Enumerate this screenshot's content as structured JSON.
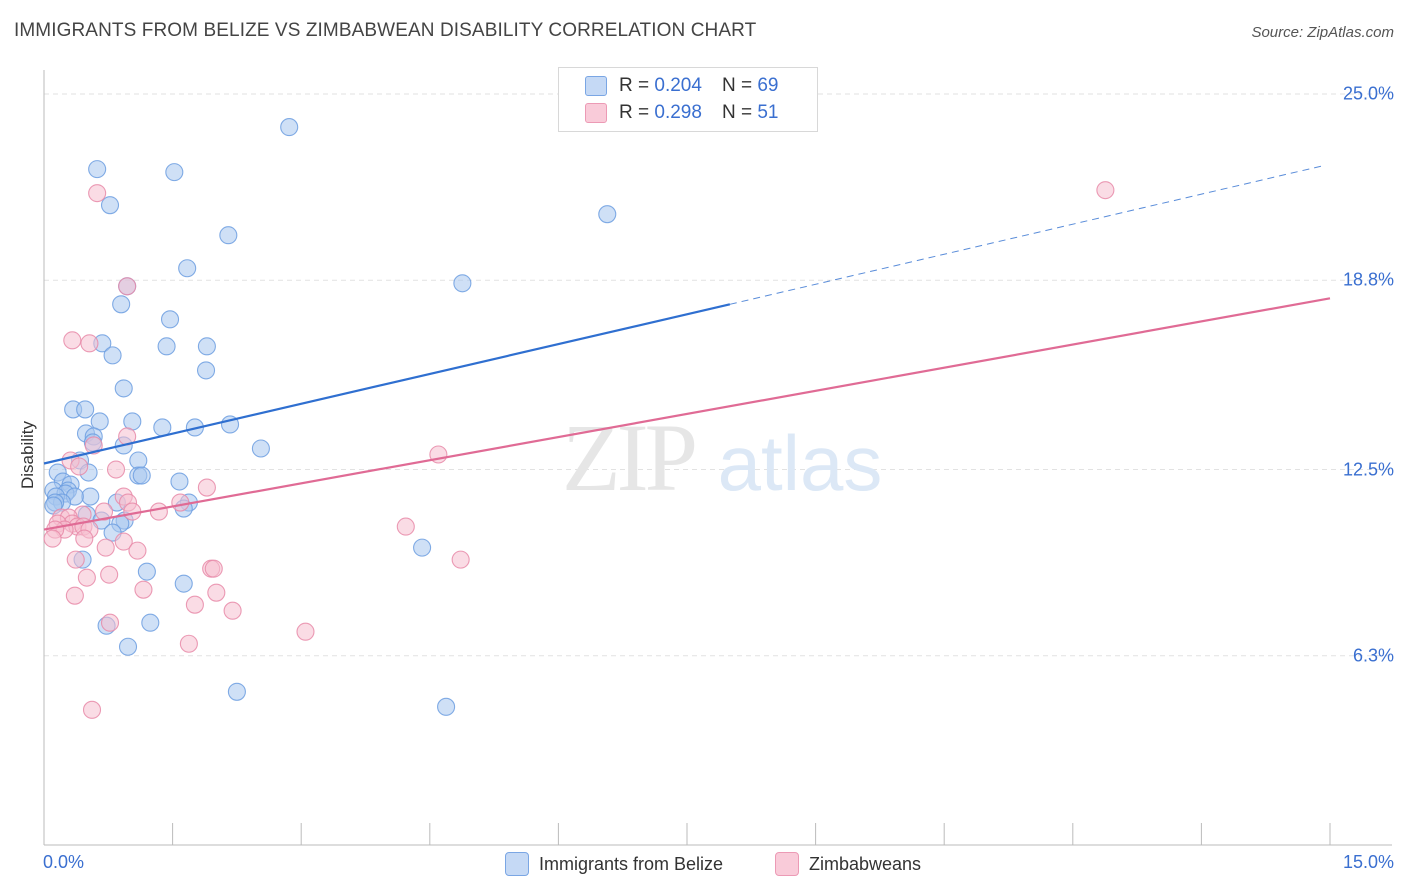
{
  "chart_data": {
    "type": "scatter",
    "title": "IMMIGRANTS FROM BELIZE VS ZIMBABWEAN DISABILITY CORRELATION CHART",
    "source": "Source: ZipAtlas.com",
    "ylabel": "Disability",
    "xlabel": "",
    "xlim": [
      0,
      15
    ],
    "ylim": [
      0,
      25.8
    ],
    "x_tick_labels": [
      "0.0%",
      "15.0%"
    ],
    "y_ticks": [
      {
        "value": 6.3,
        "label": "6.3%"
      },
      {
        "value": 12.5,
        "label": "12.5%"
      },
      {
        "value": 18.8,
        "label": "18.8%"
      },
      {
        "value": 25.0,
        "label": "25.0%"
      }
    ],
    "grid": true,
    "legend_position": "top-center",
    "watermark": "ZIPatlas",
    "legend": [
      {
        "r_label": "R =",
        "r_value": "0.204",
        "n_label": "N =",
        "n_value": "69"
      },
      {
        "r_label": "R =",
        "r_value": "0.298",
        "n_label": "N =",
        "n_value": "51"
      }
    ],
    "series": [
      {
        "name": "Immigrants from Belize",
        "color": "#6c9ee0",
        "fill": "#a8c6ef",
        "line_color": "#2f6fd0",
        "trend": {
          "x0": 0.0,
          "y0": 12.7,
          "x1": 8.0,
          "y1": 18.0,
          "dash_x1": 14.9,
          "dash_y1": 22.6
        },
        "points": [
          [
            2.86,
            23.9
          ],
          [
            0.62,
            22.5
          ],
          [
            1.52,
            22.4
          ],
          [
            0.77,
            21.3
          ],
          [
            6.57,
            21.0
          ],
          [
            2.15,
            20.3
          ],
          [
            1.67,
            19.2
          ],
          [
            4.88,
            18.7
          ],
          [
            0.97,
            18.6
          ],
          [
            0.9,
            18.0
          ],
          [
            1.47,
            17.5
          ],
          [
            0.68,
            16.7
          ],
          [
            1.43,
            16.6
          ],
          [
            1.9,
            16.6
          ],
          [
            0.8,
            16.3
          ],
          [
            1.89,
            15.8
          ],
          [
            0.93,
            15.2
          ],
          [
            0.34,
            14.5
          ],
          [
            0.48,
            14.5
          ],
          [
            0.65,
            14.1
          ],
          [
            1.03,
            14.1
          ],
          [
            1.38,
            13.9
          ],
          [
            1.76,
            13.9
          ],
          [
            2.17,
            14.0
          ],
          [
            0.49,
            13.7
          ],
          [
            0.58,
            13.6
          ],
          [
            0.57,
            13.4
          ],
          [
            0.93,
            13.3
          ],
          [
            2.53,
            13.2
          ],
          [
            0.42,
            12.8
          ],
          [
            1.1,
            12.8
          ],
          [
            0.16,
            12.4
          ],
          [
            0.52,
            12.4
          ],
          [
            1.1,
            12.3
          ],
          [
            1.14,
            12.3
          ],
          [
            1.58,
            12.1
          ],
          [
            0.22,
            12.1
          ],
          [
            0.31,
            12.0
          ],
          [
            0.28,
            11.8
          ],
          [
            0.11,
            11.8
          ],
          [
            0.25,
            11.7
          ],
          [
            0.14,
            11.6
          ],
          [
            0.54,
            11.6
          ],
          [
            0.36,
            11.6
          ],
          [
            0.21,
            11.4
          ],
          [
            0.13,
            11.4
          ],
          [
            0.11,
            11.3
          ],
          [
            0.85,
            11.4
          ],
          [
            1.69,
            11.4
          ],
          [
            1.63,
            11.2
          ],
          [
            0.5,
            11.0
          ],
          [
            0.67,
            10.8
          ],
          [
            0.94,
            10.8
          ],
          [
            0.89,
            10.7
          ],
          [
            0.8,
            10.4
          ],
          [
            0.45,
            9.5
          ],
          [
            1.2,
            9.1
          ],
          [
            4.41,
            9.9
          ],
          [
            1.63,
            8.7
          ],
          [
            0.73,
            7.3
          ],
          [
            1.24,
            7.4
          ],
          [
            0.98,
            6.6
          ],
          [
            2.25,
            5.1
          ],
          [
            4.69,
            4.6
          ]
        ]
      },
      {
        "name": "Zimbabweans",
        "color": "#e88aa8",
        "fill": "#f6bfd0",
        "line_color": "#e06b95",
        "trend": {
          "x0": 0.0,
          "y0": 10.5,
          "x1": 15.0,
          "y1": 18.2
        },
        "points": [
          [
            12.38,
            21.8
          ],
          [
            0.62,
            21.7
          ],
          [
            0.97,
            18.6
          ],
          [
            0.33,
            16.8
          ],
          [
            0.53,
            16.7
          ],
          [
            0.97,
            13.6
          ],
          [
            0.58,
            13.3
          ],
          [
            4.6,
            13.0
          ],
          [
            0.31,
            12.8
          ],
          [
            0.41,
            12.6
          ],
          [
            0.84,
            12.5
          ],
          [
            1.9,
            11.9
          ],
          [
            0.93,
            11.6
          ],
          [
            0.98,
            11.4
          ],
          [
            1.59,
            11.4
          ],
          [
            1.03,
            11.1
          ],
          [
            1.34,
            11.1
          ],
          [
            0.7,
            11.1
          ],
          [
            0.45,
            11.0
          ],
          [
            0.2,
            10.9
          ],
          [
            0.29,
            10.9
          ],
          [
            0.33,
            10.7
          ],
          [
            0.16,
            10.7
          ],
          [
            0.39,
            10.6
          ],
          [
            0.46,
            10.6
          ],
          [
            0.24,
            10.5
          ],
          [
            0.53,
            10.5
          ],
          [
            4.22,
            10.6
          ],
          [
            0.13,
            10.5
          ],
          [
            0.1,
            10.2
          ],
          [
            0.47,
            10.2
          ],
          [
            0.93,
            10.1
          ],
          [
            0.72,
            9.9
          ],
          [
            1.09,
            9.8
          ],
          [
            0.37,
            9.5
          ],
          [
            4.86,
            9.5
          ],
          [
            0.76,
            9.0
          ],
          [
            0.5,
            8.9
          ],
          [
            1.95,
            9.2
          ],
          [
            1.98,
            9.2
          ],
          [
            1.16,
            8.5
          ],
          [
            2.01,
            8.4
          ],
          [
            0.36,
            8.3
          ],
          [
            1.76,
            8.0
          ],
          [
            2.2,
            7.8
          ],
          [
            0.77,
            7.4
          ],
          [
            3.05,
            7.1
          ],
          [
            1.69,
            6.7
          ],
          [
            0.56,
            4.5
          ]
        ]
      }
    ]
  }
}
